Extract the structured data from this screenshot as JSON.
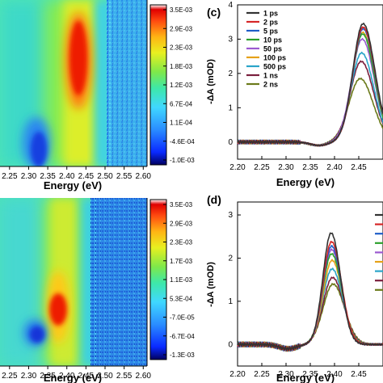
{
  "chart_data": [
    {
      "type": "heatmap",
      "panel": "top-left",
      "xlabel": "Energy (eV)",
      "x_ticks": [
        "2.25",
        "2.30",
        "2.35",
        "2.40",
        "2.45",
        "2.50",
        "2.55",
        "2.60"
      ],
      "xlim": [
        2.225,
        2.61
      ],
      "colorbar_ticks": [
        "3.5E-03",
        "2.9E-03",
        "2.3E-03",
        "1.8E-03",
        "1.2E-03",
        "6.7E-04",
        "1.1E-04",
        "-4.6E-04",
        "-1.0E-03"
      ],
      "features": [
        {
          "kind": "bleach",
          "center_ev": 2.455,
          "value": 0.0033
        },
        {
          "kind": "induced_absorption",
          "center_ev": 2.32,
          "value": -0.0009
        },
        {
          "kind": "noise",
          "range_ev": [
            2.51,
            2.6
          ]
        }
      ]
    },
    {
      "type": "heatmap",
      "panel": "bottom-left",
      "xlabel": "Energy (eV)",
      "x_ticks": [
        "2.25",
        "2.30",
        "2.35",
        "2.40",
        "2.45",
        "2.50",
        "2.55",
        "2.60"
      ],
      "xlim": [
        2.225,
        2.61
      ],
      "colorbar_ticks": [
        "3.5E-03",
        "2.9E-03",
        "2.3E-03",
        "1.7E-03",
        "1.1E-03",
        "5.3E-04",
        "-7.0E-05",
        "-6.7E-04",
        "-1.3E-03"
      ],
      "features": [
        {
          "kind": "bleach",
          "center_ev": 2.395,
          "value": 0.0033
        },
        {
          "kind": "induced_absorption",
          "center_ev": 2.355,
          "value": -0.001
        },
        {
          "kind": "noise",
          "range_ev": [
            2.48,
            2.6
          ]
        }
      ]
    },
    {
      "type": "line",
      "panel": "top-right",
      "panel_label": "(c)",
      "xlabel": "Energy (eV)",
      "ylabel": "-ΔA (mOD)",
      "xlim": [
        2.2,
        2.5
      ],
      "ylim": [
        -0.5,
        4
      ],
      "x_ticks": [
        "2.20",
        "2.25",
        "2.30",
        "2.35",
        "2.40",
        "2.45"
      ],
      "y_ticks": [
        "0",
        "1",
        "2",
        "3",
        "4"
      ],
      "series": [
        {
          "name": "1 ps",
          "color": "#333333",
          "peak": 3.45,
          "peak_ev": 2.459,
          "width": 0.03
        },
        {
          "name": "2 ps",
          "color": "#d62728",
          "peak": 3.35,
          "peak_ev": 2.459,
          "width": 0.03
        },
        {
          "name": "5 ps",
          "color": "#1f5ec8",
          "peak": 3.3,
          "peak_ev": 2.459,
          "width": 0.03
        },
        {
          "name": "10 ps",
          "color": "#2ca02c",
          "peak": 3.15,
          "peak_ev": 2.458,
          "width": 0.03
        },
        {
          "name": "50 ps",
          "color": "#9b59d0",
          "peak": 3.0,
          "peak_ev": 2.457,
          "width": 0.031
        },
        {
          "name": "100 ps",
          "color": "#e6a118",
          "peak": 3.2,
          "peak_ev": 2.458,
          "width": 0.03
        },
        {
          "name": "500 ps",
          "color": "#2aa5c9",
          "peak": 2.6,
          "peak_ev": 2.456,
          "width": 0.031
        },
        {
          "name": "1 ns",
          "color": "#7a1f3d",
          "peak": 2.35,
          "peak_ev": 2.455,
          "width": 0.032
        },
        {
          "name": "2 ns",
          "color": "#6b7a1a",
          "peak": 1.85,
          "peak_ev": 2.453,
          "width": 0.033
        }
      ]
    },
    {
      "type": "line",
      "panel": "bottom-right",
      "panel_label": "(d)",
      "xlabel": "Energy (eV)",
      "ylabel": "-ΔA (mOD)",
      "xlim": [
        2.2,
        2.5
      ],
      "ylim": [
        -0.5,
        3.3
      ],
      "x_ticks": [
        "2.20",
        "2.25",
        "2.30",
        "2.35",
        "2.40",
        "2.45"
      ],
      "y_ticks": [
        "0",
        "1",
        "2",
        "3"
      ],
      "series": [
        {
          "color": "#333333",
          "peak": 2.58,
          "peak_ev": 2.393,
          "width": 0.024
        },
        {
          "color": "#d62728",
          "peak": 2.38,
          "peak_ev": 2.394,
          "width": 0.025
        },
        {
          "color": "#1f5ec8",
          "peak": 2.28,
          "peak_ev": 2.394,
          "width": 0.025
        },
        {
          "color": "#2ca02c",
          "peak": 2.1,
          "peak_ev": 2.394,
          "width": 0.026
        },
        {
          "color": "#9b59d0",
          "peak": 2.2,
          "peak_ev": 2.394,
          "width": 0.025
        },
        {
          "color": "#e6a118",
          "peak": 1.95,
          "peak_ev": 2.395,
          "width": 0.026
        },
        {
          "color": "#2aa5c9",
          "peak": 1.75,
          "peak_ev": 2.395,
          "width": 0.027
        },
        {
          "color": "#7a1f3d",
          "peak": 1.55,
          "peak_ev": 2.396,
          "width": 0.028
        },
        {
          "color": "#6b7a1a",
          "peak": 1.4,
          "peak_ev": 2.397,
          "width": 0.029
        }
      ]
    }
  ]
}
